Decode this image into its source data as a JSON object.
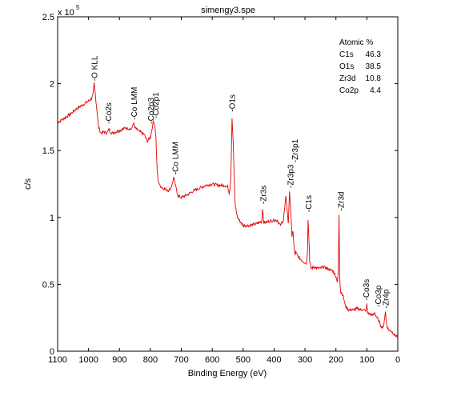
{
  "chart_data": {
    "type": "line",
    "title": "simengy3.spe",
    "xlabel": "Binding Energy  (eV)",
    "ylabel": "c/s",
    "y_exponent_label": "x 10",
    "y_exponent_power": "5",
    "xlim": [
      1100,
      0
    ],
    "ylim": [
      0,
      2.5
    ],
    "x_reversed": true,
    "xticks": [
      "1100",
      "1000",
      "900",
      "800",
      "700",
      "600",
      "500",
      "400",
      "300",
      "200",
      "100",
      "0"
    ],
    "yticks": [
      "0",
      "0.5",
      "1",
      "1.5",
      "2",
      "2.5"
    ],
    "grid": false,
    "line_color": "#e00000",
    "series": [
      {
        "x": [
          1100,
          1080,
          1060,
          1040,
          1020,
          1000,
          990,
          985,
          982,
          979,
          976,
          972,
          968,
          960,
          950,
          940,
          934,
          930,
          925,
          900,
          880,
          860,
          855,
          850,
          840,
          820,
          810,
          800,
          795,
          790,
          786,
          782,
          780,
          778,
          775,
          770,
          760,
          750,
          740,
          730,
          725,
          720,
          715,
          710,
          700,
          680,
          660,
          640,
          620,
          600,
          580,
          560,
          550,
          545,
          540,
          536,
          532,
          529,
          526,
          522,
          518,
          510,
          500,
          480,
          460,
          450,
          440,
          437,
          434,
          430,
          420,
          400,
          390,
          380,
          370,
          362,
          358,
          354,
          350,
          345,
          342,
          340,
          338,
          336,
          334,
          332,
          330,
          320,
          310,
          300,
          295,
          292,
          290,
          287,
          285,
          282,
          280,
          270,
          260,
          250,
          240,
          230,
          220,
          210,
          200,
          195,
          192,
          190,
          188,
          186,
          184,
          182,
          180,
          175,
          170,
          160,
          150,
          140,
          130,
          120,
          110,
          105,
          102,
          100,
          98,
          95,
          90,
          85,
          80,
          75,
          70,
          65,
          60,
          55,
          50,
          45,
          42,
          40,
          38,
          35,
          30,
          20,
          10,
          0
        ],
        "y": [
          1.71,
          1.74,
          1.77,
          1.81,
          1.84,
          1.87,
          1.89,
          1.92,
          2.0,
          1.94,
          1.87,
          1.78,
          1.68,
          1.63,
          1.64,
          1.63,
          1.66,
          1.64,
          1.63,
          1.65,
          1.67,
          1.66,
          1.71,
          1.67,
          1.65,
          1.62,
          1.57,
          1.6,
          1.66,
          1.72,
          1.69,
          1.6,
          1.45,
          1.35,
          1.28,
          1.24,
          1.22,
          1.21,
          1.2,
          1.24,
          1.3,
          1.25,
          1.2,
          1.16,
          1.15,
          1.17,
          1.2,
          1.22,
          1.24,
          1.25,
          1.24,
          1.24,
          1.23,
          1.18,
          1.28,
          1.75,
          1.55,
          1.3,
          1.1,
          1.04,
          1.0,
          0.97,
          0.94,
          0.94,
          0.95,
          0.96,
          0.97,
          1.07,
          0.97,
          0.96,
          0.97,
          0.98,
          0.98,
          0.94,
          0.98,
          1.15,
          1.07,
          0.95,
          1.2,
          1.0,
          0.86,
          0.89,
          0.87,
          0.8,
          0.74,
          0.72,
          0.74,
          0.7,
          0.68,
          0.66,
          0.66,
          0.75,
          0.99,
          0.82,
          0.68,
          0.64,
          0.62,
          0.63,
          0.62,
          0.62,
          0.63,
          0.62,
          0.61,
          0.6,
          0.56,
          0.52,
          0.62,
          1.02,
          0.58,
          0.48,
          0.44,
          0.44,
          0.43,
          0.4,
          0.34,
          0.31,
          0.31,
          0.31,
          0.32,
          0.31,
          0.31,
          0.3,
          0.31,
          0.35,
          0.3,
          0.28,
          0.28,
          0.27,
          0.27,
          0.29,
          0.26,
          0.24,
          0.22,
          0.19,
          0.18,
          0.19,
          0.26,
          0.3,
          0.24,
          0.19,
          0.16,
          0.15,
          0.12,
          0.11
        ]
      }
    ],
    "peak_labels": [
      {
        "text": "-O KLL",
        "x": 979,
        "y": 2.02
      },
      {
        "text": "-Co2s",
        "x": 934,
        "y": 1.7
      },
      {
        "text": "-Co LMM",
        "x": 852,
        "y": 1.73
      },
      {
        "text": "-Co2p3",
        "x": 797,
        "y": 1.7
      },
      {
        "text": "-Co2p1",
        "x": 781,
        "y": 1.74
      },
      {
        "text": "-Co LMM",
        "x": 718,
        "y": 1.32
      },
      {
        "text": "-O1s",
        "x": 534,
        "y": 1.79
      },
      {
        "text": "-Zr3s",
        "x": 434,
        "y": 1.1
      },
      {
        "text": "-Zr3p3",
        "x": 346,
        "y": 1.22
      },
      {
        "text": "-Zr3p1",
        "x": 331,
        "y": 1.41
      },
      {
        "text": "-C1s",
        "x": 287,
        "y": 1.04
      },
      {
        "text": "-Zr3d",
        "x": 183,
        "y": 1.05
      },
      {
        "text": "-Co3s",
        "x": 101,
        "y": 0.38
      },
      {
        "text": "-Co3p",
        "x": 62,
        "y": 0.33
      },
      {
        "text": "-Zr4p",
        "x": 37,
        "y": 0.32
      }
    ],
    "legend": {
      "placement": "top-right",
      "header": "Atomic %",
      "rows": [
        {
          "element": "C1s",
          "value": "46.3"
        },
        {
          "element": "O1s",
          "value": "38.5"
        },
        {
          "element": "Zr3d",
          "value": "10.8"
        },
        {
          "element": "Co2p",
          "value": "4.4"
        }
      ]
    }
  }
}
